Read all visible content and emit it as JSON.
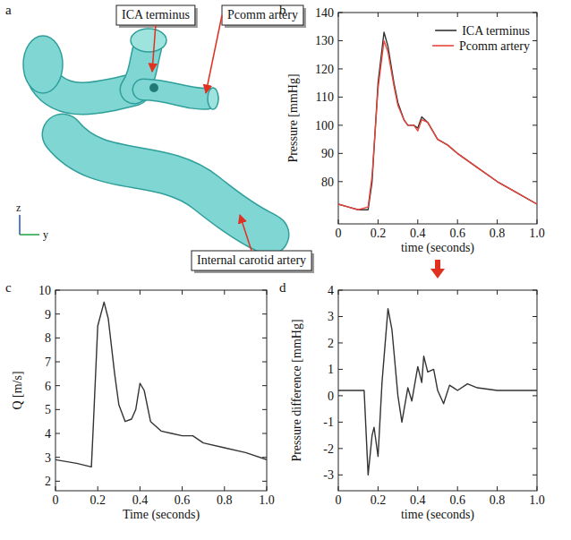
{
  "panels": [
    "a",
    "b",
    "c",
    "d"
  ],
  "mesh_diagram": {
    "labels": [
      "ICA terminus",
      "Pcomm artery",
      "Internal carotid artery"
    ],
    "axis_labels": [
      "z",
      "y"
    ]
  },
  "chart_data": [
    {
      "type": "line",
      "x_label": "time (seconds)",
      "y_label": "Pressure [mmHg]",
      "x": [
        0,
        0.05,
        0.1,
        0.15,
        0.17,
        0.2,
        0.23,
        0.25,
        0.28,
        0.3,
        0.33,
        0.35,
        0.38,
        0.4,
        0.42,
        0.45,
        0.5,
        0.55,
        0.6,
        0.7,
        0.8,
        0.9,
        1.0
      ],
      "series": [
        {
          "name": "ICA terminus",
          "color": "#333333",
          "values": [
            72,
            71,
            70,
            70,
            80,
            115,
            133,
            128,
            115,
            108,
            102,
            100,
            100,
            99,
            103,
            101,
            95,
            93,
            90,
            85,
            80,
            76,
            72
          ]
        },
        {
          "name": "Pcomm artery",
          "color": "#e8443a",
          "values": [
            72,
            71,
            70,
            71,
            82,
            113,
            130,
            126,
            114,
            107,
            102,
            100,
            100,
            98,
            102,
            101,
            95,
            93,
            90,
            85,
            80,
            76,
            72
          ]
        }
      ],
      "xlim": [
        0,
        1.0
      ],
      "ylim": [
        65,
        140
      ],
      "xticks": [
        0,
        0.2,
        0.4,
        0.6,
        0.8,
        {
          "value": 1.0,
          "label": "1.0"
        }
      ],
      "yticks": [
        80,
        90,
        100,
        110,
        120,
        130,
        140
      ],
      "legend": "upper right",
      "grid": false
    },
    {
      "type": "line",
      "x_label": "Time (seconds)",
      "y_label": "Q [m/s]",
      "x": [
        0,
        0.1,
        0.17,
        0.18,
        0.2,
        0.23,
        0.25,
        0.28,
        0.3,
        0.33,
        0.36,
        0.38,
        0.4,
        0.42,
        0.45,
        0.5,
        0.55,
        0.6,
        0.65,
        0.7,
        0.8,
        0.9,
        1.0
      ],
      "series": [
        {
          "name": "Q",
          "color": "#333333",
          "values": [
            2.9,
            2.75,
            2.6,
            4.5,
            8.5,
            9.5,
            8.8,
            6.5,
            5.2,
            4.5,
            4.6,
            5.0,
            6.1,
            5.8,
            4.5,
            4.1,
            4.0,
            3.9,
            3.9,
            3.6,
            3.4,
            3.2,
            2.9
          ]
        }
      ],
      "xlim": [
        0,
        1.0
      ],
      "ylim": [
        1.6,
        10
      ],
      "xticks": [
        0,
        0.2,
        0.4,
        0.6,
        0.8,
        {
          "value": 1.0,
          "label": "1.0"
        }
      ],
      "yticks": [
        2,
        3,
        4,
        5,
        6,
        7,
        8,
        9,
        10
      ],
      "grid": false
    },
    {
      "type": "line",
      "x_label": "time (seconds)",
      "y_label": "Pressure difference [mmHg]",
      "x": [
        0,
        0.13,
        0.15,
        0.17,
        0.18,
        0.2,
        0.22,
        0.25,
        0.27,
        0.3,
        0.32,
        0.35,
        0.37,
        0.4,
        0.42,
        0.43,
        0.45,
        0.48,
        0.5,
        0.53,
        0.56,
        0.6,
        0.65,
        0.7,
        0.8,
        0.9,
        1.0
      ],
      "series": [
        {
          "name": "Pressure difference",
          "color": "#333333",
          "values": [
            0.2,
            0.2,
            -3.0,
            -1.5,
            -1.2,
            -2.3,
            0.5,
            3.3,
            2.5,
            0,
            -1.0,
            0.3,
            -0.2,
            1.1,
            0.5,
            1.5,
            0.9,
            1.0,
            0.2,
            -0.3,
            0.4,
            0.2,
            0.45,
            0.3,
            0.2,
            0.2,
            0.2
          ]
        }
      ],
      "xlim": [
        0,
        1.0
      ],
      "ylim": [
        -3.6,
        4
      ],
      "xticks": [
        0,
        0.2,
        0.4,
        0.6,
        0.8,
        {
          "value": 1.0,
          "label": "1.0"
        }
      ],
      "yticks": [
        -3,
        -2,
        -1,
        0,
        1,
        2,
        3,
        4
      ],
      "grid": false
    }
  ]
}
